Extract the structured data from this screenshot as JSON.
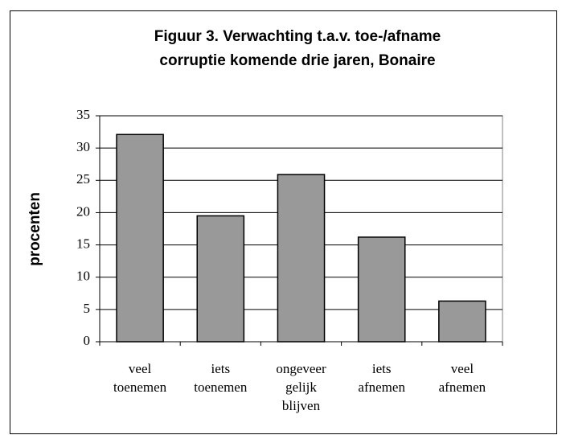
{
  "chart_data": {
    "type": "bar",
    "title": [
      "Figuur 3. Verwachting t.a.v. toe-/afname",
      "corruptie komende drie jaren, Bonaire"
    ],
    "y_label": "procenten",
    "categories": [
      [
        "veel",
        "toenemen"
      ],
      [
        "iets",
        "toenemen"
      ],
      [
        "ongeveer",
        "gelijk",
        "blijven"
      ],
      [
        "iets",
        "afnemen"
      ],
      [
        "veel",
        "afnemen"
      ]
    ],
    "values": [
      32.1,
      19.5,
      25.9,
      16.2,
      6.3
    ],
    "color": "#999999",
    "ylim": [
      0,
      35
    ],
    "yticks": [
      0,
      5,
      10,
      15,
      20,
      25,
      30,
      35
    ],
    "grid": true
  }
}
